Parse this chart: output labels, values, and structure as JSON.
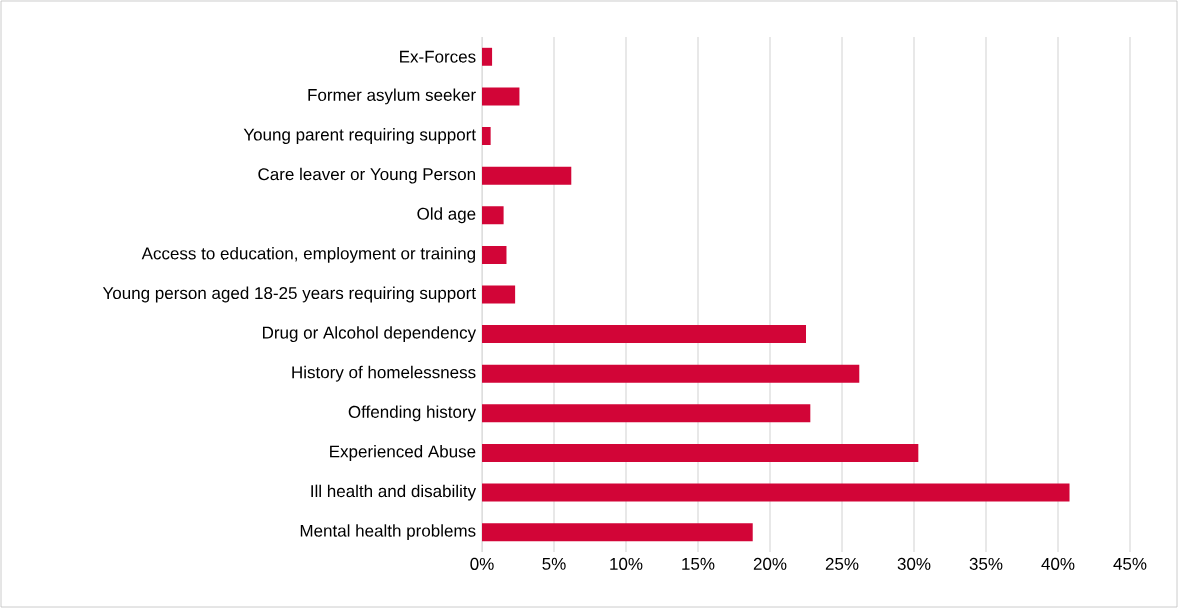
{
  "chart_data": {
    "type": "bar",
    "orientation": "horizontal",
    "categories": [
      "Ex-Forces",
      "Former asylum seeker",
      "Young parent requiring support",
      "Care leaver or Young Person",
      "Old age",
      "Access to education, employment or training",
      "Young person aged 18-25 years requiring support",
      "Drug or Alcohol dependency",
      "History of homelessness",
      "Offending history",
      "Experienced Abuse",
      "Ill health and disability",
      "Mental health problems"
    ],
    "values": [
      0.7,
      2.6,
      0.6,
      6.2,
      1.5,
      1.7,
      2.3,
      22.5,
      26.2,
      22.8,
      30.3,
      40.8,
      18.8
    ],
    "color": "#d20537",
    "xlim": [
      0,
      45
    ],
    "xticks": [
      {
        "value": 0,
        "label": "0%"
      },
      {
        "value": 5,
        "label": "5%"
      },
      {
        "value": 10,
        "label": "10%"
      },
      {
        "value": 15,
        "label": "15%"
      },
      {
        "value": 20,
        "label": "20%"
      },
      {
        "value": 25,
        "label": "25%"
      },
      {
        "value": 30,
        "label": "30%"
      },
      {
        "value": 35,
        "label": "35%"
      },
      {
        "value": 40,
        "label": "40%"
      },
      {
        "value": 45,
        "label": "45%"
      }
    ],
    "grid": "x"
  }
}
